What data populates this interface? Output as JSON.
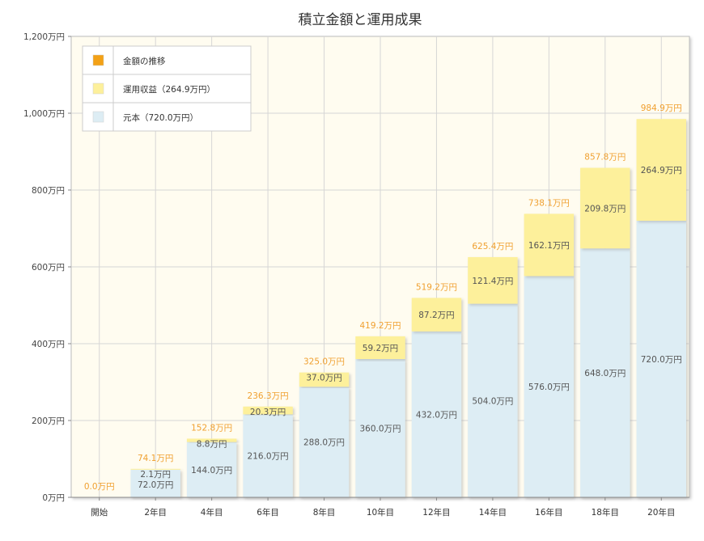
{
  "chart_data": {
    "type": "bar",
    "stacked": true,
    "title": "積立金額と運用成果",
    "xlabel": "",
    "ylabel": "",
    "ylim": [
      0,
      1200
    ],
    "y_ticks": [
      "0万円",
      "200万円",
      "400万円",
      "600万円",
      "800万円",
      "1,000万円",
      "1,200万円"
    ],
    "categories": [
      "開始",
      "2年目",
      "4年目",
      "6年目",
      "8年目",
      "10年目",
      "12年目",
      "14年目",
      "16年目",
      "18年目",
      "20年目"
    ],
    "grid": true,
    "legend_position": "top-left",
    "legend": [
      {
        "label": "金額の推移",
        "color": "#f3a116"
      },
      {
        "label": "運用収益（264.9万円）",
        "color": "#fdf09b"
      },
      {
        "label": "元本（720.0万円）",
        "color": "#ddedf4"
      }
    ],
    "series": [
      {
        "name": "元本",
        "color": "#ddedf4",
        "values": [
          0,
          72.0,
          144.0,
          216.0,
          288.0,
          360.0,
          432.0,
          504.0,
          576.0,
          648.0,
          720.0
        ],
        "labels": [
          "",
          "72.0万円",
          "144.0万円",
          "216.0万円",
          "288.0万円",
          "360.0万円",
          "432.0万円",
          "504.0万円",
          "576.0万円",
          "648.0万円",
          "720.0万円"
        ]
      },
      {
        "name": "運用収益",
        "color": "#fdf09b",
        "values": [
          0,
          2.1,
          8.8,
          20.3,
          37.0,
          59.2,
          87.2,
          121.4,
          162.1,
          209.8,
          264.9
        ],
        "labels": [
          "",
          "2.1万円",
          "8.8万円",
          "20.3万円",
          "37.0万円",
          "59.2万円",
          "87.2万円",
          "121.4万円",
          "162.1万円",
          "209.8万円",
          "264.9万円"
        ]
      }
    ],
    "totals": {
      "name": "金額の推移",
      "color": "#f0a030",
      "values": [
        0.0,
        74.1,
        152.8,
        236.3,
        325.0,
        419.2,
        519.2,
        625.4,
        738.1,
        857.8,
        984.9
      ],
      "labels": [
        "0.0万円",
        "74.1万円",
        "152.8万円",
        "236.3万円",
        "325.0万円",
        "419.2万円",
        "519.2万円",
        "625.4万円",
        "738.1万円",
        "857.8万円",
        "984.9万円"
      ]
    }
  }
}
